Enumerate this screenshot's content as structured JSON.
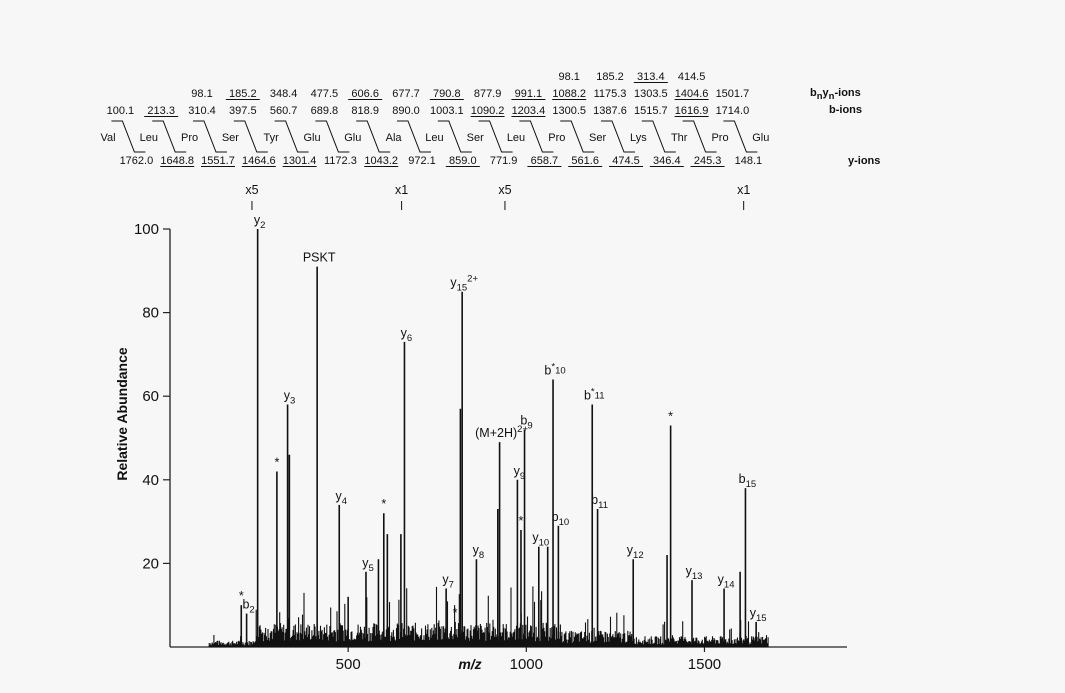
{
  "sequence": [
    "Val",
    "Leu",
    "Pro",
    "Ser",
    "Tyr",
    "Glu",
    "Glu",
    "Ala",
    "Leu",
    "Ser",
    "Leu",
    "Pro",
    "Ser",
    "Lys",
    "Thr",
    "Pro",
    "Glu"
  ],
  "ion_rows": {
    "bnyn_label": "bnyn-ions",
    "b_label": "b-ions",
    "y_label": "y-ions",
    "bnyn_upper": [
      {
        "pos": 11,
        "text": "98.1"
      },
      {
        "pos": 12,
        "text": "185.2"
      },
      {
        "pos": 13,
        "text": "313.4",
        "underline": true
      },
      {
        "pos": 14,
        "text": "414.5"
      }
    ],
    "bnyn": [
      {
        "pos": 2,
        "text": "98.1"
      },
      {
        "pos": 3,
        "text": "185.2",
        "underline": true
      },
      {
        "pos": 4,
        "text": "348.4"
      },
      {
        "pos": 5,
        "text": "477.5"
      },
      {
        "pos": 6,
        "text": "606.6",
        "underline": true
      },
      {
        "pos": 7,
        "text": "677.7"
      },
      {
        "pos": 8,
        "text": "790.8",
        "underline": true
      },
      {
        "pos": 9,
        "text": "877.9"
      },
      {
        "pos": 10,
        "text": "991.1",
        "underline": true
      },
      {
        "pos": 11,
        "text": "1088.2",
        "underline": true
      },
      {
        "pos": 12,
        "text": "1175.3"
      },
      {
        "pos": 13,
        "text": "1303.5"
      },
      {
        "pos": 14,
        "text": "1404.6",
        "underline": true
      },
      {
        "pos": 15,
        "text": "1501.7"
      }
    ],
    "b": [
      {
        "pos": 0,
        "text": "100.1"
      },
      {
        "pos": 1,
        "text": "213.3",
        "underline": true
      },
      {
        "pos": 2,
        "text": "310.4"
      },
      {
        "pos": 3,
        "text": "397.5"
      },
      {
        "pos": 4,
        "text": "560.7"
      },
      {
        "pos": 5,
        "text": "689.8"
      },
      {
        "pos": 6,
        "text": "818.9"
      },
      {
        "pos": 7,
        "text": "890.0"
      },
      {
        "pos": 8,
        "text": "1003.1"
      },
      {
        "pos": 9,
        "text": "1090.2",
        "underline": true
      },
      {
        "pos": 10,
        "text": "1203.4",
        "underline": true
      },
      {
        "pos": 11,
        "text": "1300.5"
      },
      {
        "pos": 12,
        "text": "1387.6"
      },
      {
        "pos": 13,
        "text": "1515.7"
      },
      {
        "pos": 14,
        "text": "1616.9",
        "underline": true
      },
      {
        "pos": 15,
        "text": "1714.0"
      }
    ],
    "y": [
      {
        "pos": 0,
        "text": "1762.0"
      },
      {
        "pos": 1,
        "text": "1648.8",
        "underline": true
      },
      {
        "pos": 2,
        "text": "1551.7",
        "underline": true
      },
      {
        "pos": 3,
        "text": "1464.6",
        "underline": true
      },
      {
        "pos": 4,
        "text": "1301.4",
        "underline": true
      },
      {
        "pos": 5,
        "text": "1172.3"
      },
      {
        "pos": 6,
        "text": "1043.2",
        "underline": true
      },
      {
        "pos": 7,
        "text": "972.1"
      },
      {
        "pos": 8,
        "text": "859.0",
        "underline": true
      },
      {
        "pos": 9,
        "text": "771.9"
      },
      {
        "pos": 10,
        "text": "658.7",
        "underline": true
      },
      {
        "pos": 11,
        "text": "561.6",
        "underline": true
      },
      {
        "pos": 12,
        "text": "474.5",
        "underline": true
      },
      {
        "pos": 13,
        "text": "346.4",
        "underline": true
      },
      {
        "pos": 14,
        "text": "245.3",
        "underline": true
      },
      {
        "pos": 15,
        "text": "148.1"
      }
    ]
  },
  "chart_data": {
    "type": "bar",
    "xlabel": "m/z",
    "ylabel": "Relative Abundance",
    "xlim": [
      0,
      1900
    ],
    "ylim": [
      0,
      100
    ],
    "xticks": [
      500,
      1000,
      1500
    ],
    "yticks": [
      20,
      40,
      60,
      80,
      100
    ],
    "magnification": [
      {
        "label": "x5",
        "mz": 230
      },
      {
        "label": "x1",
        "mz": 650
      },
      {
        "label": "x5",
        "mz": 940
      },
      {
        "label": "x1",
        "mz": 1610
      }
    ],
    "peaks": [
      {
        "mz": 200,
        "value": 10,
        "label": "*"
      },
      {
        "mz": 215,
        "value": 8,
        "label": "b",
        "sub": "2"
      },
      {
        "mz": 246,
        "value": 100,
        "label": "y",
        "sub": "2"
      },
      {
        "mz": 300,
        "value": 42,
        "label": "*"
      },
      {
        "mz": 330,
        "value": 58,
        "label": "y",
        "sub": "3"
      },
      {
        "mz": 335,
        "value": 46
      },
      {
        "mz": 413,
        "value": 91,
        "label": "PSKT"
      },
      {
        "mz": 475,
        "value": 34,
        "label": "y",
        "sub": "4"
      },
      {
        "mz": 500,
        "value": 12
      },
      {
        "mz": 550,
        "value": 18,
        "label": "y",
        "sub": "5"
      },
      {
        "mz": 585,
        "value": 21
      },
      {
        "mz": 600,
        "value": 32,
        "label": "*"
      },
      {
        "mz": 610,
        "value": 27
      },
      {
        "mz": 648,
        "value": 27
      },
      {
        "mz": 658,
        "value": 73,
        "label": "y",
        "sub": "6"
      },
      {
        "mz": 775,
        "value": 14,
        "label": "y",
        "sub": "7"
      },
      {
        "mz": 800,
        "value": 6,
        "label": "*"
      },
      {
        "mz": 815,
        "value": 57
      },
      {
        "mz": 820,
        "value": 85,
        "label": "y",
        "sub": "15",
        "sup": "2+"
      },
      {
        "mz": 860,
        "value": 21,
        "label": "y",
        "sub": "8"
      },
      {
        "mz": 920,
        "value": 33
      },
      {
        "mz": 925,
        "value": 49,
        "label": "(M+2H)",
        "sup": "2+"
      },
      {
        "mz": 975,
        "value": 40,
        "label": "y",
        "sub": "9"
      },
      {
        "mz": 985,
        "value": 28,
        "label": "*"
      },
      {
        "mz": 995,
        "value": 52,
        "label": "b",
        "sub": "9"
      },
      {
        "mz": 1035,
        "value": 24,
        "label": "y",
        "sub": "10"
      },
      {
        "mz": 1060,
        "value": 24
      },
      {
        "mz": 1075,
        "value": 64,
        "label": "b",
        "sub": "10",
        "mark": "*"
      },
      {
        "mz": 1090,
        "value": 29,
        "label": "b",
        "sub": "10"
      },
      {
        "mz": 1185,
        "value": 58,
        "label": "b",
        "sub": "11",
        "mark": "*"
      },
      {
        "mz": 1200,
        "value": 33,
        "label": "b",
        "sub": "11"
      },
      {
        "mz": 1300,
        "value": 21,
        "label": "y",
        "sub": "12"
      },
      {
        "mz": 1395,
        "value": 22
      },
      {
        "mz": 1405,
        "value": 53,
        "label": "*"
      },
      {
        "mz": 1465,
        "value": 16,
        "label": "y",
        "sub": "13"
      },
      {
        "mz": 1555,
        "value": 14,
        "label": "y",
        "sub": "14"
      },
      {
        "mz": 1600,
        "value": 18
      },
      {
        "mz": 1615,
        "value": 38,
        "label": "b",
        "sub": "15"
      },
      {
        "mz": 1645,
        "value": 6,
        "label": "y",
        "sub": "15"
      }
    ]
  }
}
